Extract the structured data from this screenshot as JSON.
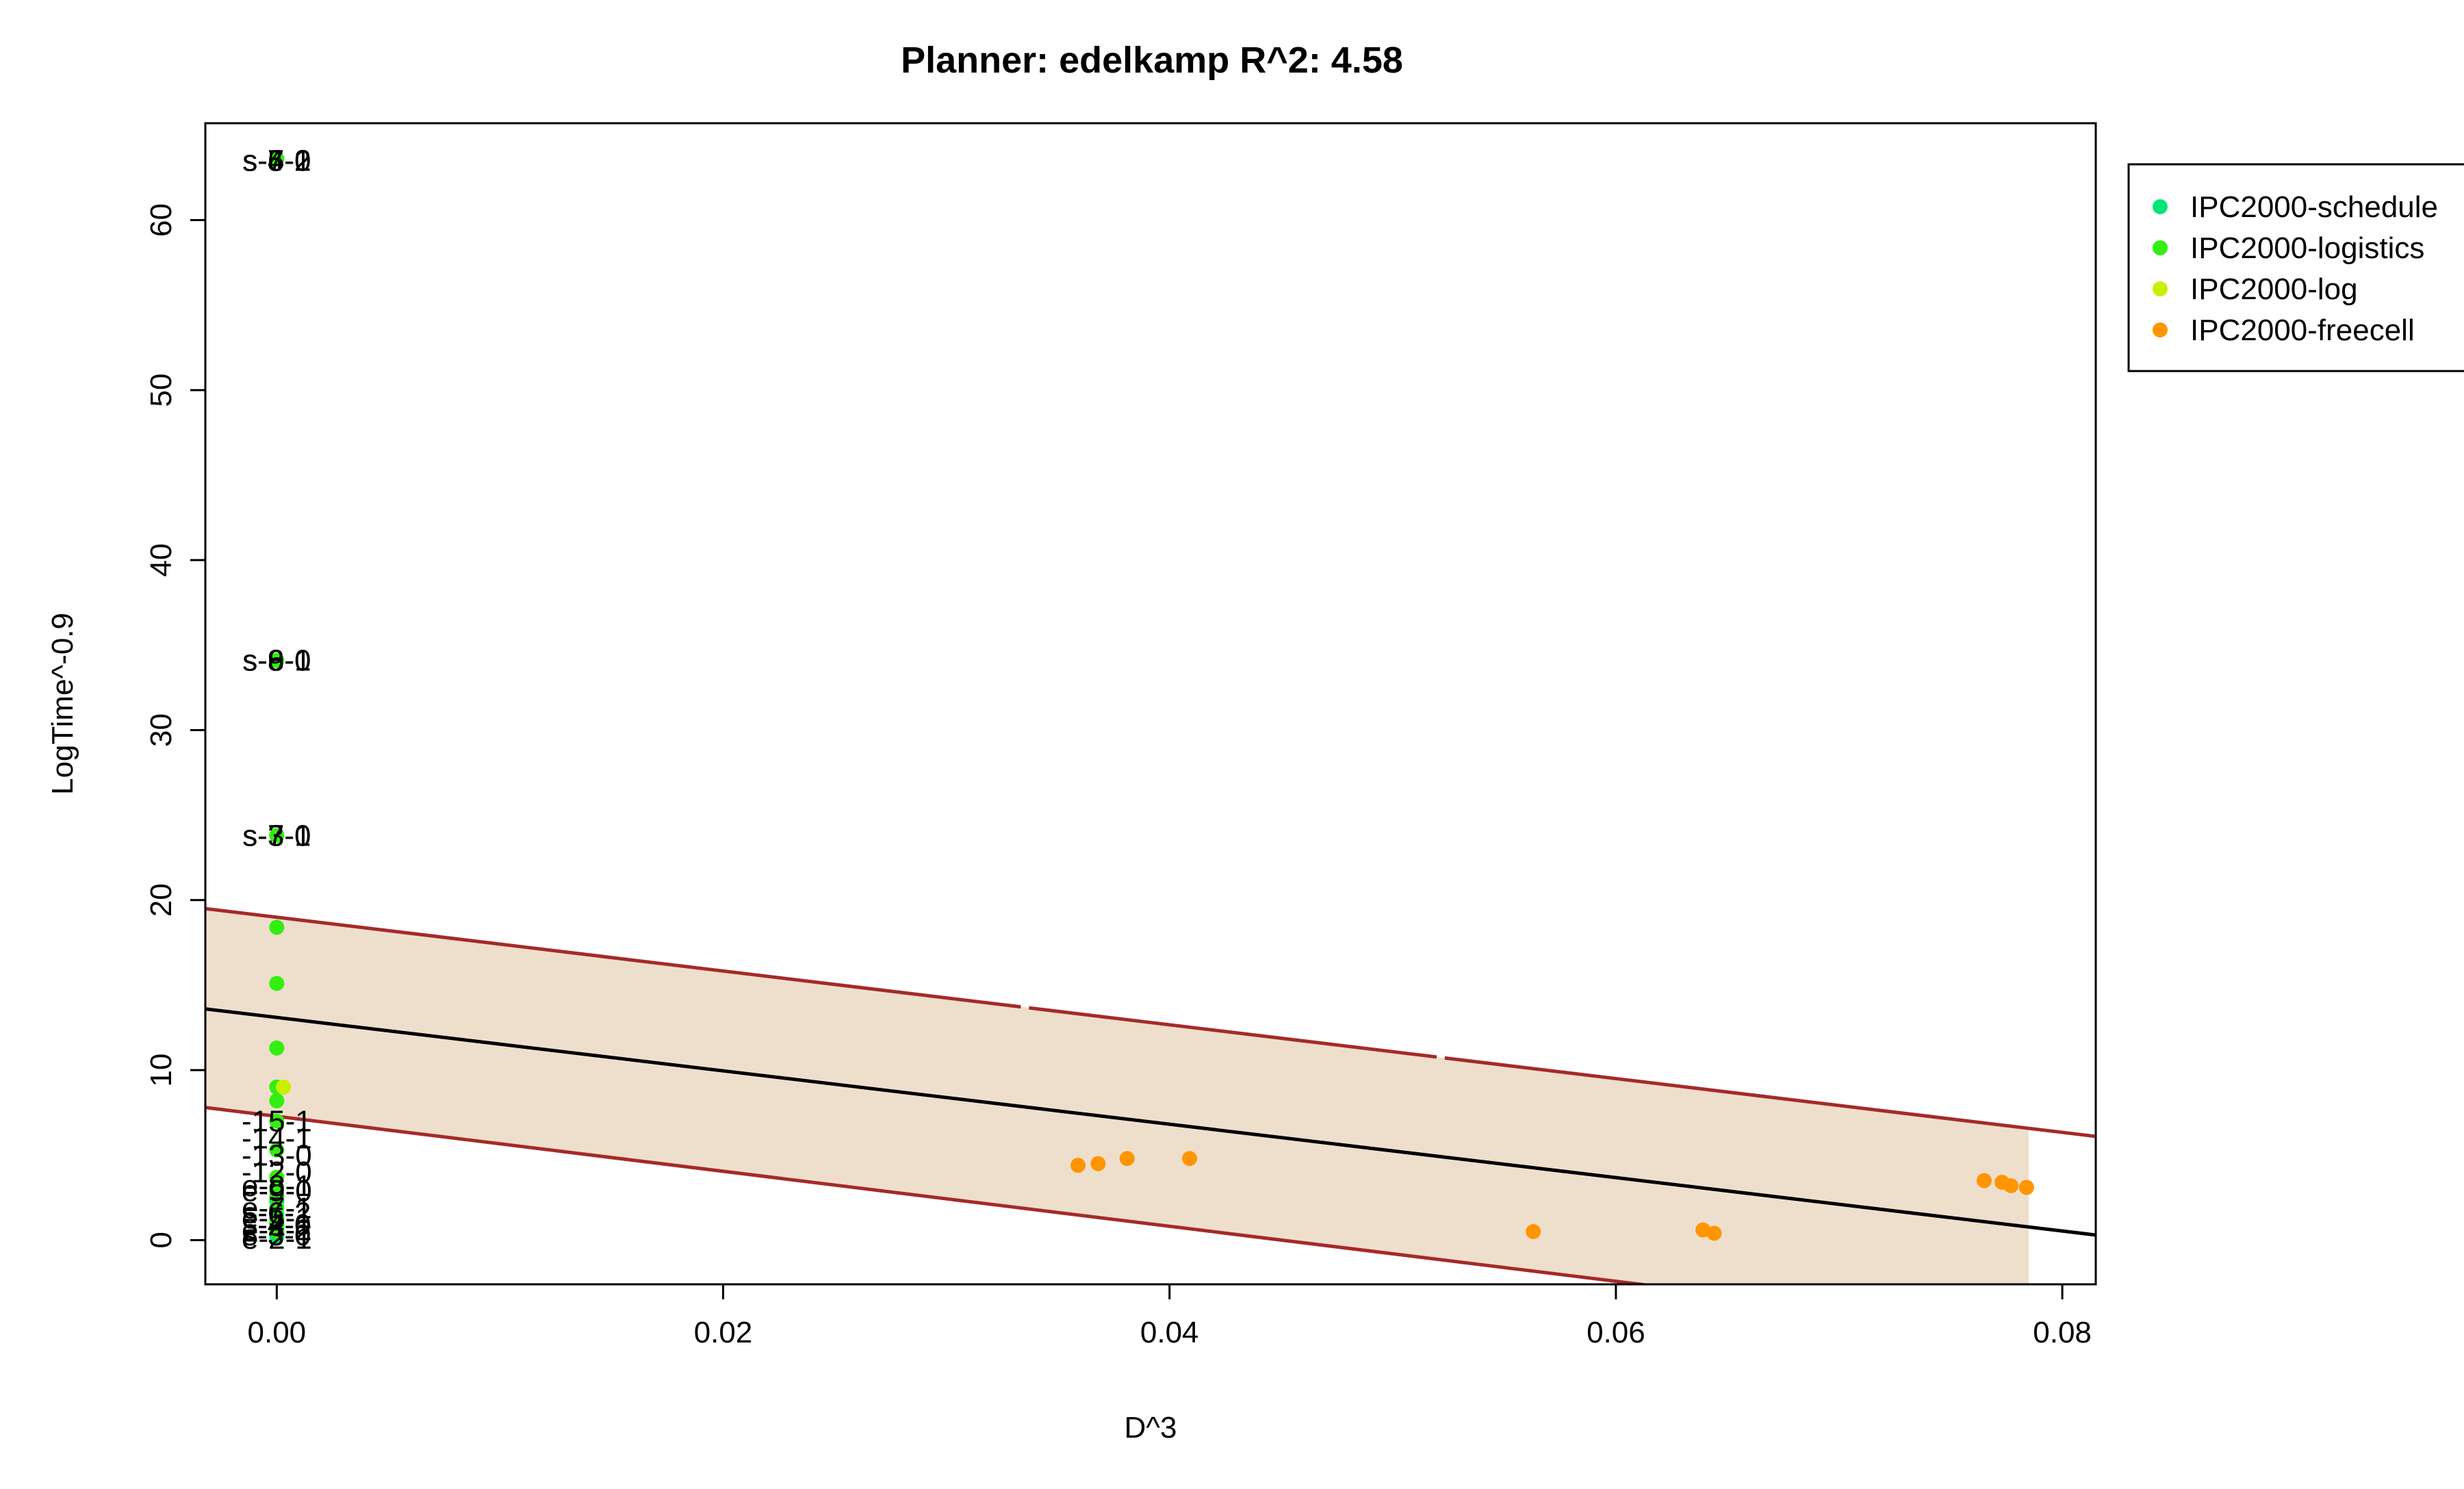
{
  "chart_data": {
    "type": "scatter",
    "title": "Planner: edelkamp R^2: 4.58",
    "xlabel": "D^3",
    "ylabel": "LogTime^-0.9",
    "xlim": [
      -0.0032,
      0.0815
    ],
    "ylim": [
      -2.6,
      65.7
    ],
    "x_ticks": [
      0.0,
      0.02,
      0.04,
      0.06,
      0.08
    ],
    "x_tick_labels": [
      "0.00",
      "0.02",
      "0.04",
      "0.06",
      "0.08"
    ],
    "y_ticks": [
      0,
      10,
      20,
      30,
      40,
      50,
      60
    ],
    "y_tick_labels": [
      "0",
      "10",
      "20",
      "30",
      "40",
      "50",
      "60"
    ],
    "grid": false,
    "legend_position": "top-right",
    "colors": {
      "IPC2000-schedule": "#00e676",
      "IPC2000-logistics": "#33ee11",
      "IPC2000-log": "#c8f000",
      "IPC2000-freecell": "#ff9500",
      "fit_line": "#000000",
      "band_line": "#a52a2a",
      "band_fill": "#eedfcc"
    },
    "series": [
      {
        "name": "IPC2000-schedule",
        "x": [
          0,
          0,
          0,
          0,
          0,
          0,
          0,
          0,
          0,
          0,
          0,
          0
        ],
        "y": [
          63.6,
          63.6,
          34.1,
          23.8,
          2.3,
          1.5,
          1.0,
          0.8,
          0.6,
          0.4,
          0.3,
          0.2
        ]
      },
      {
        "name": "IPC2000-logistics",
        "x": [
          0,
          0,
          0,
          0,
          0,
          0,
          0,
          0,
          0,
          0,
          0,
          0,
          0,
          0,
          0,
          0,
          0
        ],
        "y": [
          63.6,
          34.1,
          23.8,
          18.4,
          15.1,
          11.3,
          9.0,
          8.2,
          7.0,
          5.3,
          3.7,
          3.1,
          2.6,
          1.9,
          1.2,
          0.9,
          0.5
        ]
      },
      {
        "name": "IPC2000-log",
        "x": [
          0.0003
        ],
        "y": [
          9.0
        ]
      },
      {
        "name": "IPC2000-freecell",
        "x": [
          0.0359,
          0.0368,
          0.0381,
          0.0409,
          0.0563,
          0.0639,
          0.0644,
          0.0765,
          0.0773,
          0.0777,
          0.0784
        ],
        "y": [
          4.4,
          4.5,
          4.8,
          4.8,
          0.5,
          0.6,
          0.4,
          3.5,
          3.4,
          3.2,
          3.1
        ]
      }
    ],
    "fit_line": {
      "x": [
        -0.0032,
        0.0815
      ],
      "y": [
        13.6,
        0.3
      ]
    },
    "upper_band": {
      "x": [
        -0.0032,
        0.0815
      ],
      "y": [
        19.5,
        6.1
      ]
    },
    "lower_band": {
      "x": [
        -0.0032,
        0.0815
      ],
      "y": [
        7.8,
        -5.9
      ]
    },
    "band_fill_x_range": [
      -0.0032,
      0.0785
    ],
    "point_labels": [
      {
        "text": "s-4-2",
        "x": 0.0,
        "y": 63.5
      },
      {
        "text": "s-5-1",
        "x": 0.0,
        "y": 63.5
      },
      {
        "text": "s-6-0",
        "x": 0.0,
        "y": 63.5
      },
      {
        "text": "s-7-2",
        "x": 0.0,
        "y": 63.5
      },
      {
        "text": "s-8-1",
        "x": 0.0,
        "y": 34.1
      },
      {
        "text": "s-9-0",
        "x": 0.0,
        "y": 34.1
      },
      {
        "text": "s-6-1",
        "x": 0.0,
        "y": 34.1
      },
      {
        "text": "s-7-0",
        "x": 0.0,
        "y": 23.8
      },
      {
        "text": "s-3-1",
        "x": 0.0,
        "y": 23.8
      },
      {
        "text": "-15-1",
        "x": 0.0,
        "y": 7.0
      },
      {
        "text": "-14-1",
        "x": 0.0,
        "y": 6.0
      },
      {
        "text": "-13-0",
        "x": 0.0,
        "y": 5.0
      },
      {
        "text": "-12-0",
        "x": 0.0,
        "y": 4.0
      },
      {
        "text": "e-8-1",
        "x": 0.0,
        "y": 3.2
      },
      {
        "text": "e-9-0",
        "x": 0.0,
        "y": 2.9
      },
      {
        "text": "e-7-1",
        "x": 0.0,
        "y": 1.9
      },
      {
        "text": "s-6-2",
        "x": 0.0,
        "y": 1.6
      },
      {
        "text": "e-5-1",
        "x": 0.0,
        "y": 1.3
      },
      {
        "text": "s-4-0",
        "x": 0.0,
        "y": 0.9
      },
      {
        "text": "e-4-2",
        "x": 0.0,
        "y": 0.6
      },
      {
        "text": "s-3-0",
        "x": 0.0,
        "y": 0.3
      },
      {
        "text": "e-2-1",
        "x": 0.0,
        "y": 0.1
      }
    ]
  }
}
